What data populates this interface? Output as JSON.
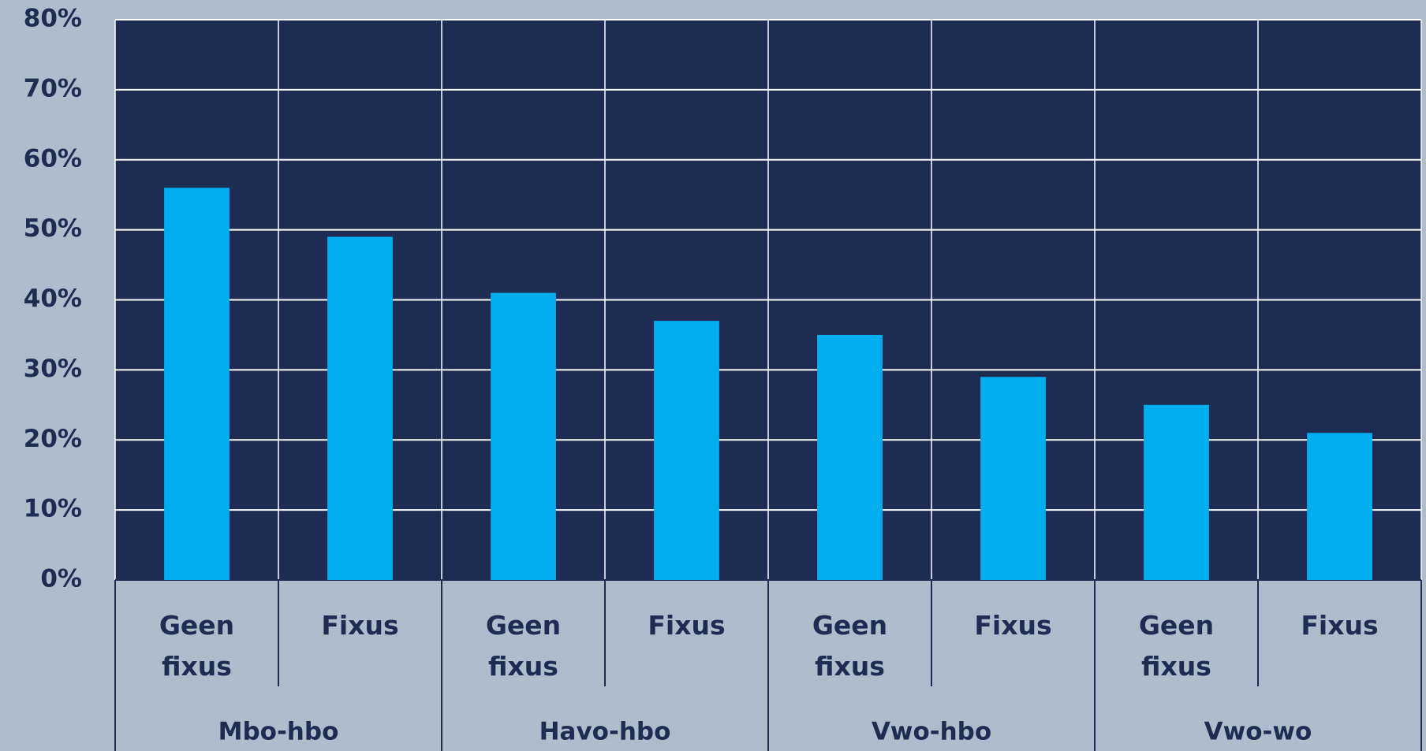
{
  "chart_data": {
    "type": "bar",
    "categories": [
      "Geen fixus",
      "Fixus",
      "Geen fixus",
      "Fixus",
      "Geen fixus",
      "Fixus",
      "Geen fixus",
      "Fixus"
    ],
    "groups": [
      "Mbo-hbo",
      "Havo-hbo",
      "Vwo-hbo",
      "Vwo-wo"
    ],
    "values": [
      56,
      49,
      41,
      37,
      35,
      29,
      25,
      21
    ],
    "color": "#00aeef",
    "ylim": [
      0,
      80
    ],
    "yticks": [
      {
        "value": 0,
        "label": "0%"
      },
      {
        "value": 10,
        "label": "10%"
      },
      {
        "value": 20,
        "label": "20%"
      },
      {
        "value": 30,
        "label": "30%"
      },
      {
        "value": 40,
        "label": "40%"
      },
      {
        "value": 50,
        "label": "50%"
      },
      {
        "value": 60,
        "label": "60%"
      },
      {
        "value": 70,
        "label": "70%"
      },
      {
        "value": 80,
        "label": "80%"
      }
    ],
    "grid": true
  }
}
